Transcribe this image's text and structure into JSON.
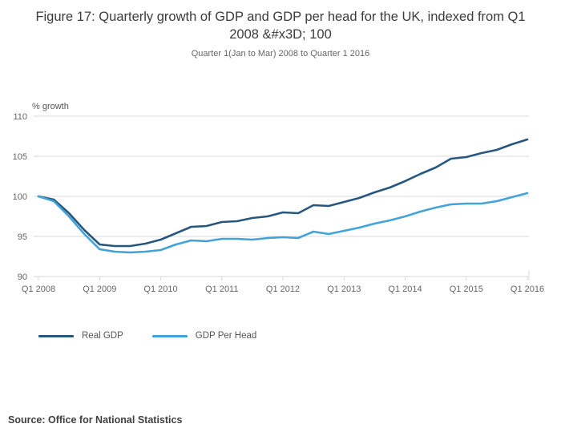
{
  "chart": {
    "title": "Figure 17: Quarterly growth of GDP and GDP per head for the UK, indexed from Q1 2008 &#x3D; 100",
    "subtitle": "Quarter 1(Jan to Mar) 2008 to Quarter 1 2016",
    "source": "Source: Office for National Statistics"
  },
  "chart_data": {
    "type": "line",
    "title": "Figure 17: Quarterly growth of GDP and GDP per head for the UK, indexed from Q1 2008 &#x3D; 100",
    "subtitle": "Quarter 1(Jan to Mar) 2008 to Quarter 1 2016",
    "ylabel": "% growth",
    "xlabel": "",
    "ylim": [
      90,
      110
    ],
    "yticks": [
      90,
      95,
      100,
      105,
      110
    ],
    "grid": true,
    "legend_position": "bottom",
    "xtick_every": 4,
    "xtick_labels": [
      "Q1 2008",
      "Q1 2009",
      "Q1 2010",
      "Q1 2011",
      "Q1 2012",
      "Q1 2013",
      "Q1 2014",
      "Q1 2015",
      "Q1 2016"
    ],
    "categories": [
      "Q1 2008",
      "Q2 2008",
      "Q3 2008",
      "Q4 2008",
      "Q1 2009",
      "Q2 2009",
      "Q3 2009",
      "Q4 2009",
      "Q1 2010",
      "Q2 2010",
      "Q3 2010",
      "Q4 2010",
      "Q1 2011",
      "Q2 2011",
      "Q3 2011",
      "Q4 2011",
      "Q1 2012",
      "Q2 2012",
      "Q3 2012",
      "Q4 2012",
      "Q1 2013",
      "Q2 2013",
      "Q3 2013",
      "Q4 2013",
      "Q1 2014",
      "Q2 2014",
      "Q3 2014",
      "Q4 2014",
      "Q1 2015",
      "Q2 2015",
      "Q3 2015",
      "Q4 2015",
      "Q1 2016"
    ],
    "series": [
      {
        "name": "Real GDP",
        "color": "#27577f",
        "values": [
          100,
          99.6,
          97.9,
          95.8,
          94.0,
          93.8,
          93.8,
          94.1,
          94.6,
          95.4,
          96.2,
          96.3,
          96.8,
          96.9,
          97.3,
          97.5,
          98.0,
          97.9,
          98.9,
          98.8,
          99.3,
          99.8,
          100.5,
          101.1,
          101.9,
          102.8,
          103.6,
          104.7,
          104.9,
          105.4,
          105.8,
          106.5,
          107.1
        ]
      },
      {
        "name": "GDP Per Head",
        "color": "#41a3d8",
        "values": [
          100,
          99.4,
          97.5,
          95.3,
          93.4,
          93.1,
          93.0,
          93.1,
          93.3,
          94.0,
          94.5,
          94.4,
          94.7,
          94.7,
          94.6,
          94.8,
          94.9,
          94.8,
          95.6,
          95.3,
          95.7,
          96.1,
          96.6,
          97.0,
          97.5,
          98.1,
          98.6,
          99.0,
          99.1,
          99.1,
          99.4,
          99.9,
          100.4
        ]
      }
    ],
    "colors": {
      "grid": "#d9d9d9",
      "axis_text": "#666666",
      "title_text": "#3c3c3c"
    }
  }
}
